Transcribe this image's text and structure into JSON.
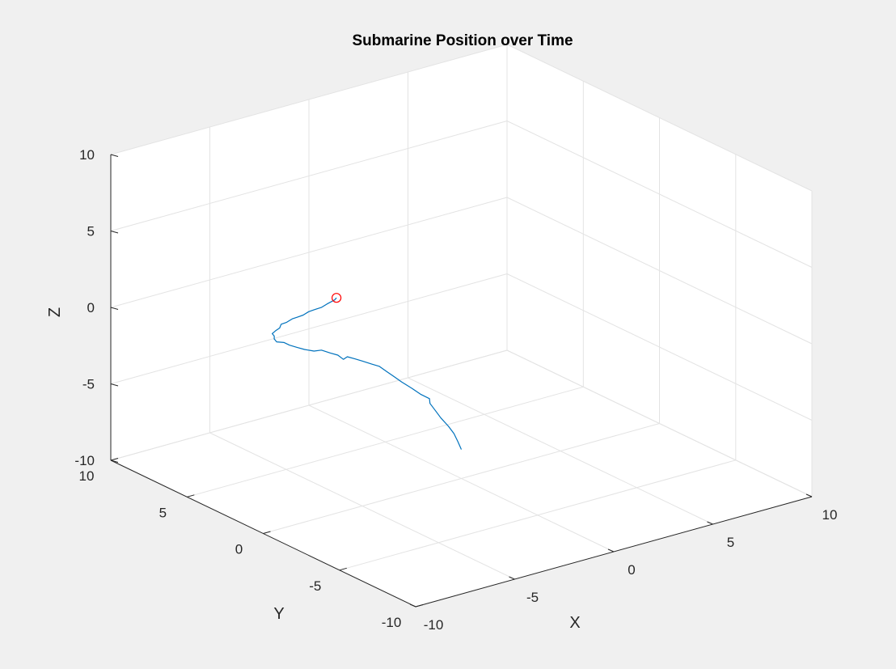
{
  "window": {
    "background": "#f0f0f0"
  },
  "chart_data": {
    "type": "line3d",
    "title": "Submarine Position over Time",
    "xlabel": "X",
    "ylabel": "Y",
    "zlabel": "Z",
    "xlim": [
      -10,
      10
    ],
    "ylim": [
      -10,
      10
    ],
    "zlim": [
      -10,
      10
    ],
    "xticks": [
      -10,
      -5,
      0,
      5,
      10
    ],
    "yticks": [
      -10,
      -5,
      0,
      5,
      10
    ],
    "zticks": [
      -10,
      -5,
      0,
      5,
      10
    ],
    "xtick_labels": [
      "-10",
      "-5",
      "0",
      "5",
      "10"
    ],
    "ytick_labels": [
      "-10",
      "-5",
      "0",
      "5",
      "10"
    ],
    "ztick_labels": [
      "-10",
      "-5",
      "0",
      "5",
      "10"
    ],
    "grid": true,
    "box": "back-planes",
    "series": [
      {
        "color": "#0072bd",
        "points": [
          [
            0,
            0,
            -8.1
          ],
          [
            -0.1,
            0.1,
            -7.6
          ],
          [
            -0.3,
            0.1,
            -7.0
          ],
          [
            -0.5,
            0.2,
            -6.5
          ],
          [
            -0.8,
            0.3,
            -5.9
          ],
          [
            -1.0,
            0.4,
            -5.4
          ],
          [
            -1.2,
            0.5,
            -4.9
          ],
          [
            -1.3,
            0.4,
            -4.5
          ],
          [
            -1.6,
            0.6,
            -4.2
          ],
          [
            -2.0,
            0.6,
            -3.7
          ],
          [
            -2.4,
            0.8,
            -3.2
          ],
          [
            -2.7,
            0.9,
            -2.8
          ],
          [
            -3.0,
            1.0,
            -2.4
          ],
          [
            -3.3,
            1.1,
            -2.0
          ],
          [
            -3.6,
            1.2,
            -1.8
          ],
          [
            -4.0,
            1.3,
            -1.5
          ],
          [
            -4.3,
            1.4,
            -1.3
          ],
          [
            -4.6,
            1.5,
            -1.1
          ],
          [
            -4.8,
            1.5,
            -1.2
          ],
          [
            -5.0,
            1.6,
            -0.9
          ],
          [
            -5.3,
            1.7,
            -0.7
          ],
          [
            -5.6,
            1.9,
            -0.5
          ],
          [
            -5.9,
            2.0,
            -0.5
          ],
          [
            -6.3,
            2.1,
            -0.3
          ],
          [
            -6.6,
            2.2,
            -0.1
          ],
          [
            -6.9,
            2.3,
            0.1
          ],
          [
            -7.1,
            2.4,
            0.3
          ],
          [
            -7.4,
            2.5,
            0.4
          ],
          [
            -7.5,
            2.5,
            0.6
          ],
          [
            -7.6,
            2.4,
            0.7
          ],
          [
            -7.6,
            2.4,
            0.9
          ],
          [
            -7.7,
            2.4,
            1.1
          ],
          [
            -7.6,
            2.3,
            1.3
          ],
          [
            -7.4,
            2.3,
            1.4
          ],
          [
            -7.4,
            2.2,
            1.7
          ],
          [
            -7.2,
            2.1,
            1.8
          ],
          [
            -7.0,
            2.0,
            2.0
          ],
          [
            -6.8,
            1.9,
            2.1
          ],
          [
            -6.6,
            1.8,
            2.2
          ],
          [
            -6.4,
            1.7,
            2.4
          ],
          [
            -6.2,
            1.6,
            2.5
          ],
          [
            -5.9,
            1.5,
            2.6
          ],
          [
            -5.7,
            1.4,
            2.8
          ],
          [
            -5.4,
            1.3,
            3.0
          ],
          [
            -5.3,
            1.3,
            3.1
          ]
        ],
        "marker_end": {
          "shape": "circle",
          "color": "#ff0000",
          "point": [
            -5.3,
            1.3,
            3.1
          ]
        }
      }
    ]
  }
}
